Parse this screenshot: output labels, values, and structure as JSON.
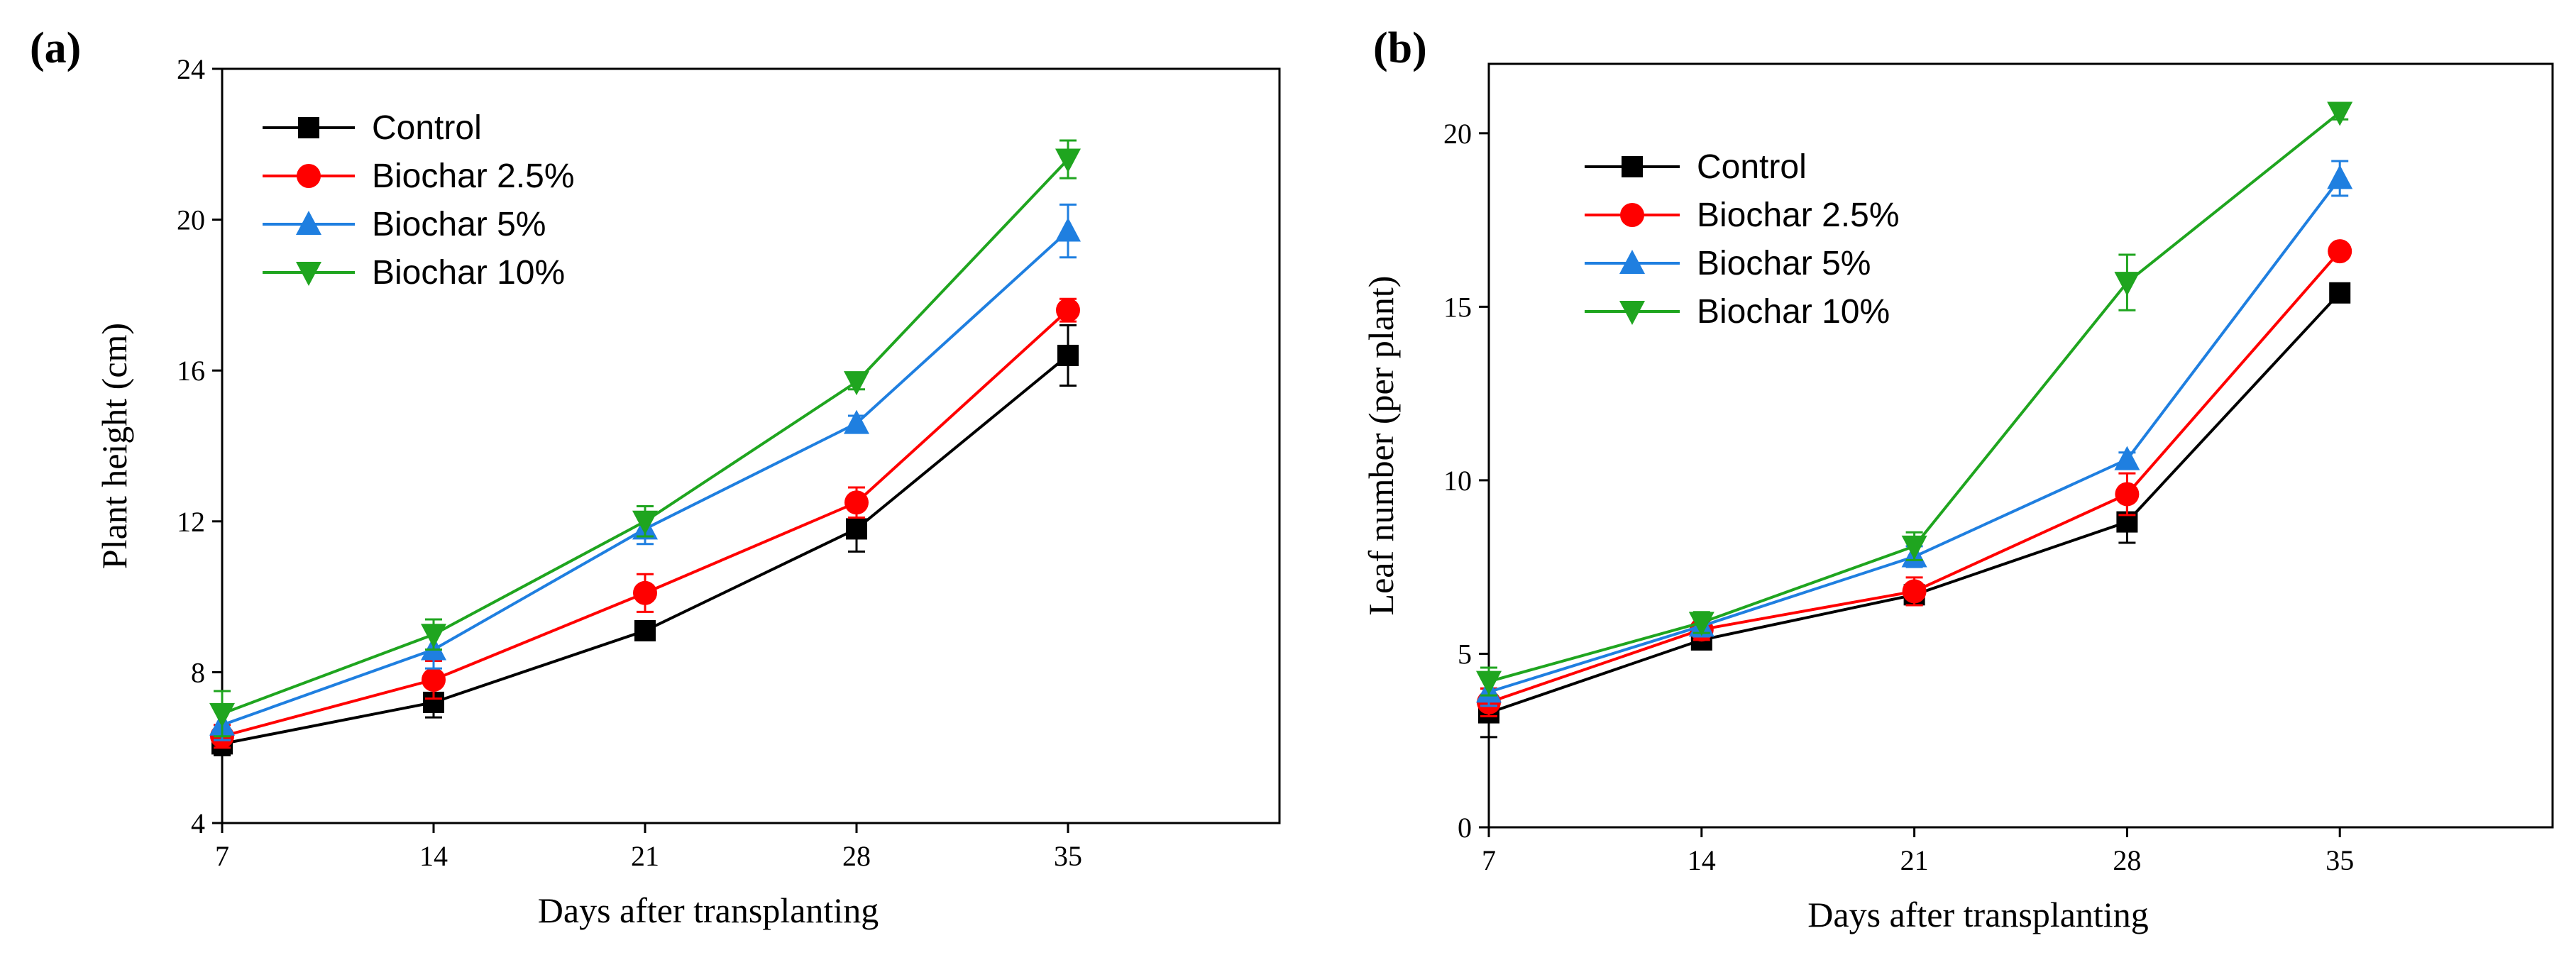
{
  "chart_data": [
    {
      "type": "line",
      "panel_label": "(a)",
      "xlabel": "Days after transplanting",
      "ylabel": "Plant height (cm)",
      "x": [
        7,
        14,
        21,
        28,
        35
      ],
      "xlim": [
        7,
        42
      ],
      "ylim": [
        4,
        24
      ],
      "xticks": [
        7,
        14,
        21,
        28,
        35
      ],
      "yticks": [
        4,
        8,
        12,
        16,
        20,
        24
      ],
      "legend_position": "top-left",
      "series": [
        {
          "name": "Control",
          "color": "#000000",
          "marker": "square",
          "values": [
            6.1,
            7.2,
            9.1,
            11.8,
            16.4
          ],
          "errors": [
            0.3,
            0.4,
            0.2,
            0.6,
            0.8
          ]
        },
        {
          "name": "Biochar 2.5%",
          "color": "#ff0000",
          "marker": "circle",
          "values": [
            6.3,
            7.8,
            10.1,
            12.5,
            17.6
          ],
          "errors": [
            0.3,
            0.5,
            0.5,
            0.4,
            0.3
          ]
        },
        {
          "name": "Biochar 5%",
          "color": "#1f7fe0",
          "marker": "triangle-up",
          "values": [
            6.6,
            8.6,
            11.8,
            14.6,
            19.7
          ],
          "errors": [
            0.4,
            0.5,
            0.4,
            0.2,
            0.7
          ]
        },
        {
          "name": "Biochar 10%",
          "color": "#1fa51f",
          "marker": "triangle-down",
          "values": [
            6.9,
            9.0,
            12.0,
            15.7,
            21.6
          ],
          "errors": [
            0.6,
            0.4,
            0.4,
            0.2,
            0.5
          ]
        }
      ]
    },
    {
      "type": "line",
      "panel_label": "(b)",
      "xlabel": "Days after transplanting",
      "ylabel": "Leaf number (per plant)",
      "x": [
        7,
        14,
        21,
        28,
        35
      ],
      "xlim": [
        7,
        42
      ],
      "ylim": [
        0,
        22
      ],
      "xticks": [
        7,
        14,
        21,
        28,
        35
      ],
      "yticks": [
        0,
        5,
        10,
        15,
        20
      ],
      "legend_position": "top-left",
      "series": [
        {
          "name": "Control",
          "color": "#000000",
          "marker": "square",
          "values": [
            3.3,
            5.4,
            6.7,
            8.8,
            15.4
          ],
          "errors": [
            0.7,
            0.2,
            0.3,
            0.6,
            0.2
          ]
        },
        {
          "name": "Biochar 2.5%",
          "color": "#ff0000",
          "marker": "circle",
          "values": [
            3.6,
            5.7,
            6.8,
            9.6,
            16.6
          ],
          "errors": [
            0.4,
            0.3,
            0.4,
            0.6,
            0.2
          ]
        },
        {
          "name": "Biochar 5%",
          "color": "#1f7fe0",
          "marker": "triangle-up",
          "values": [
            3.9,
            5.8,
            7.8,
            10.6,
            18.7
          ],
          "errors": [
            0.4,
            0.3,
            0.3,
            0.2,
            0.5
          ]
        },
        {
          "name": "Biochar 10%",
          "color": "#1fa51f",
          "marker": "triangle-down",
          "values": [
            4.2,
            5.9,
            8.1,
            15.7,
            20.6
          ],
          "errors": [
            0.4,
            0.3,
            0.4,
            0.8,
            0.2
          ]
        }
      ]
    }
  ]
}
